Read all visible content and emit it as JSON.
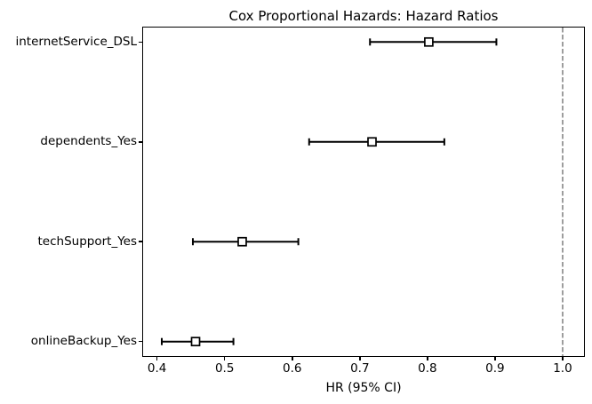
{
  "figure": {
    "background": "#ffffff"
  },
  "chart_data": {
    "type": "scatter",
    "subtype": "forest-plot-errorbars",
    "title": "Cox Proportional Hazards: Hazard Ratios",
    "xlabel": "HR (95% CI)",
    "rows": [
      {
        "label": "internetService_DSL",
        "position": 3,
        "hr": 0.802,
        "ci_low": 0.715,
        "ci_high": 0.902
      },
      {
        "label": "dependents_Yes",
        "position": 2,
        "hr": 0.718,
        "ci_low": 0.625,
        "ci_high": 0.825
      },
      {
        "label": "techSupport_Yes",
        "position": 1,
        "hr": 0.526,
        "ci_low": 0.453,
        "ci_high": 0.609
      },
      {
        "label": "onlineBackup_Yes",
        "position": 0,
        "hr": 0.457,
        "ci_low": 0.407,
        "ci_high": 0.513
      }
    ],
    "xticks": {
      "values": [
        0.4,
        0.5,
        0.6,
        0.7,
        0.8,
        0.9,
        1.0
      ],
      "labels": [
        "0.4",
        "0.5",
        "0.6",
        "0.7",
        "0.8",
        "0.9",
        "1.0"
      ]
    },
    "xlim": [
      0.3794,
      1.0316
    ],
    "ylim": [
      -0.145,
      3.145
    ],
    "reference_line": {
      "x": 1.0,
      "style": "dashed",
      "color": "#7f7f7f"
    },
    "style": {
      "errorbar_color": "#000000",
      "marker": "square",
      "marker_face": "#ffffff",
      "marker_edge": "#000000",
      "grid": false,
      "legend": null
    }
  }
}
